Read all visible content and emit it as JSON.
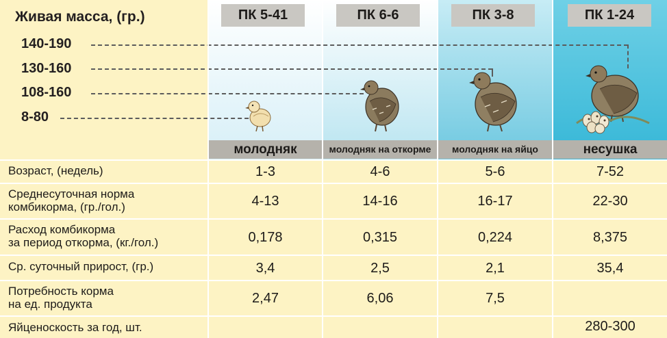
{
  "header": {
    "title": "Живая масса, (гр.)",
    "weights": [
      "140-190",
      "130-160",
      "108-160",
      "8-80"
    ]
  },
  "columns": [
    {
      "code": "ПК 5-41",
      "stage": "молодняк"
    },
    {
      "code": "ПК 6-6",
      "stage": "молодняк на откорме"
    },
    {
      "code": "ПК 3-8",
      "stage": "молодняк на яйцо"
    },
    {
      "code": "ПК 1-24",
      "stage": "несушка"
    }
  ],
  "rows": [
    {
      "label": "Возраст, (недель)",
      "values": [
        "1-3",
        "4-6",
        "5-6",
        "7-52"
      ]
    },
    {
      "label_line1": "Среднесуточная норма",
      "label_line2": "комбикорма, (гр./гол.)",
      "values": [
        "4-13",
        "14-16",
        "16-17",
        "22-30"
      ]
    },
    {
      "label_line1": "Расход комбикорма",
      "label_line2": "за период откорма, (кг./гол.)",
      "values": [
        "0,178",
        "0,315",
        "0,224",
        "8,375"
      ]
    },
    {
      "label": "Ср. суточный прирост, (гр.)",
      "values": [
        "3,4",
        "2,5",
        "2,1",
        "35,4"
      ]
    },
    {
      "label_line1": "Потребность корма",
      "label_line2": "на ед. продукта",
      "values": [
        "2,47",
        "6,06",
        "7,5",
        ""
      ]
    },
    {
      "label": "Яйценоскость за год, шт.",
      "values": [
        "",
        "",
        "",
        "280-300"
      ]
    }
  ],
  "colors": {
    "table_bg": "#fdf3c4",
    "col1_bg": "#e2f3f8",
    "col2_bg": "#c2e8f2",
    "col3_bg": "#7ccfe4",
    "col4_bg": "#40bedb",
    "stage_bar": "#b5b2ab",
    "header_tab": "#c9c7c2"
  },
  "icons": [
    "chick-icon",
    "quail-fattening-icon",
    "quail-young-layer-icon",
    "quail-layer-with-eggs-icon"
  ]
}
